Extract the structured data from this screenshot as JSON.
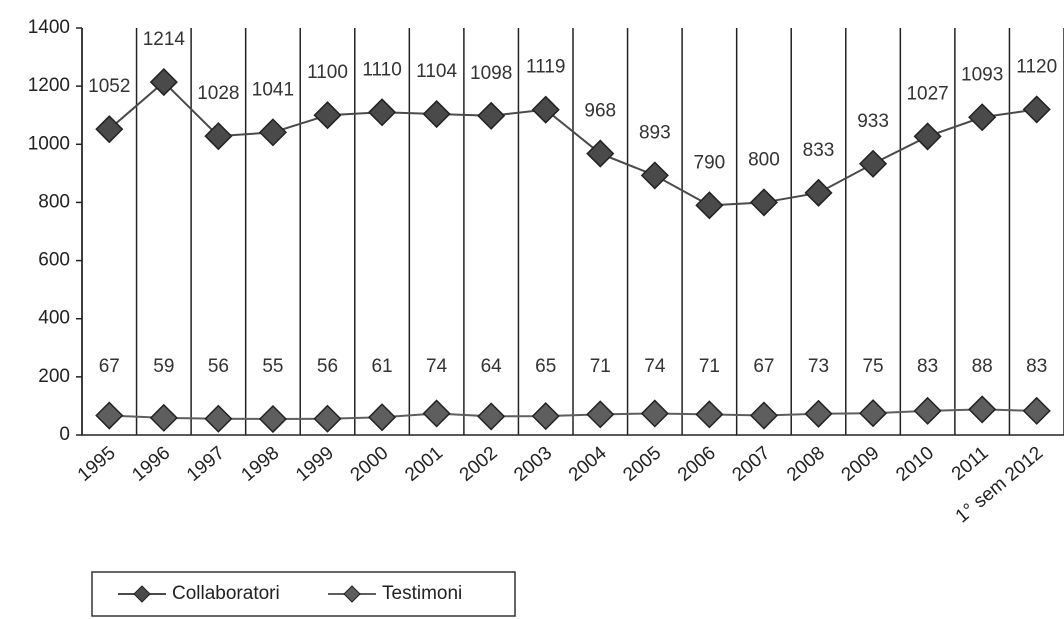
{
  "chart_data": {
    "type": "line",
    "categories": [
      "1995",
      "1996",
      "1997",
      "1998",
      "1999",
      "2000",
      "2001",
      "2002",
      "2003",
      "2004",
      "2005",
      "2006",
      "2007",
      "2008",
      "2009",
      "2010",
      "2011",
      "1° sem 2012"
    ],
    "series": [
      {
        "name": "Collaboratori",
        "color": "#4a4a4a",
        "values": [
          1052,
          1214,
          1028,
          1041,
          1100,
          1110,
          1104,
          1098,
          1119,
          968,
          893,
          790,
          800,
          833,
          933,
          1027,
          1093,
          1120
        ]
      },
      {
        "name": "Testimoni",
        "color": "#5e5e5e",
        "values": [
          67,
          59,
          56,
          55,
          56,
          61,
          74,
          64,
          65,
          71,
          74,
          71,
          67,
          73,
          75,
          83,
          88,
          83
        ]
      }
    ],
    "ylim": [
      0,
      1400
    ],
    "yticks": [
      0,
      200,
      400,
      600,
      800,
      1000,
      1200,
      1400
    ],
    "grid": true
  }
}
